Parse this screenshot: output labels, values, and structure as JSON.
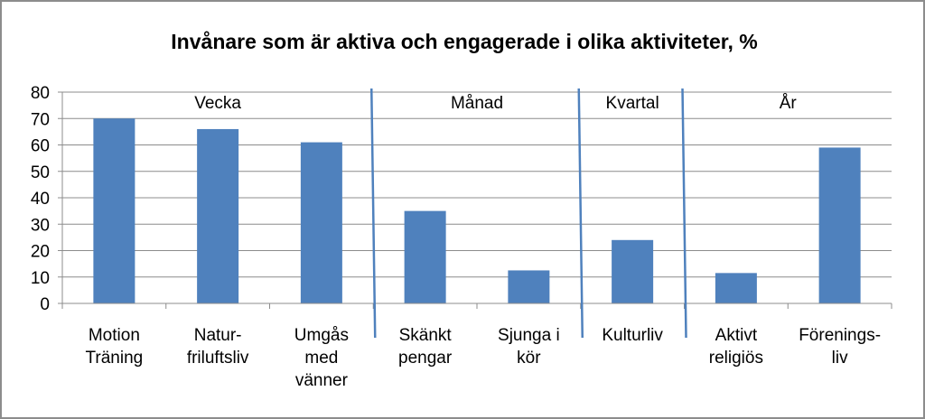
{
  "chart_data": {
    "type": "bar",
    "title": "Invånare som är aktiva och engagerade i olika aktiviteter, %",
    "xlabel": "",
    "ylabel": "",
    "ylim": [
      0,
      80
    ],
    "yticks": [
      0,
      10,
      20,
      30,
      40,
      50,
      60,
      70,
      80
    ],
    "grid": true,
    "legend": "none",
    "bar_color": "#4f81bd",
    "categories": [
      [
        "Motion",
        "Träning"
      ],
      [
        "Natur-",
        "friluftsliv"
      ],
      [
        "Umgås",
        "med",
        "vänner"
      ],
      [
        "Skänkt",
        "pengar"
      ],
      [
        "Sjunga i",
        "kör"
      ],
      [
        "Kulturliv"
      ],
      [
        "Aktivt",
        "religiös"
      ],
      [
        "Förenings-",
        "liv"
      ]
    ],
    "values": [
      70,
      66,
      61,
      35,
      12.5,
      24,
      11.5,
      59
    ],
    "period_groups": [
      {
        "label": "Vecka",
        "categories": [
          0,
          1,
          2
        ]
      },
      {
        "label": "Månad",
        "categories": [
          3,
          4
        ]
      },
      {
        "label": "Kvartal",
        "categories": [
          5
        ]
      },
      {
        "label": "År",
        "categories": [
          6,
          7
        ]
      }
    ]
  }
}
